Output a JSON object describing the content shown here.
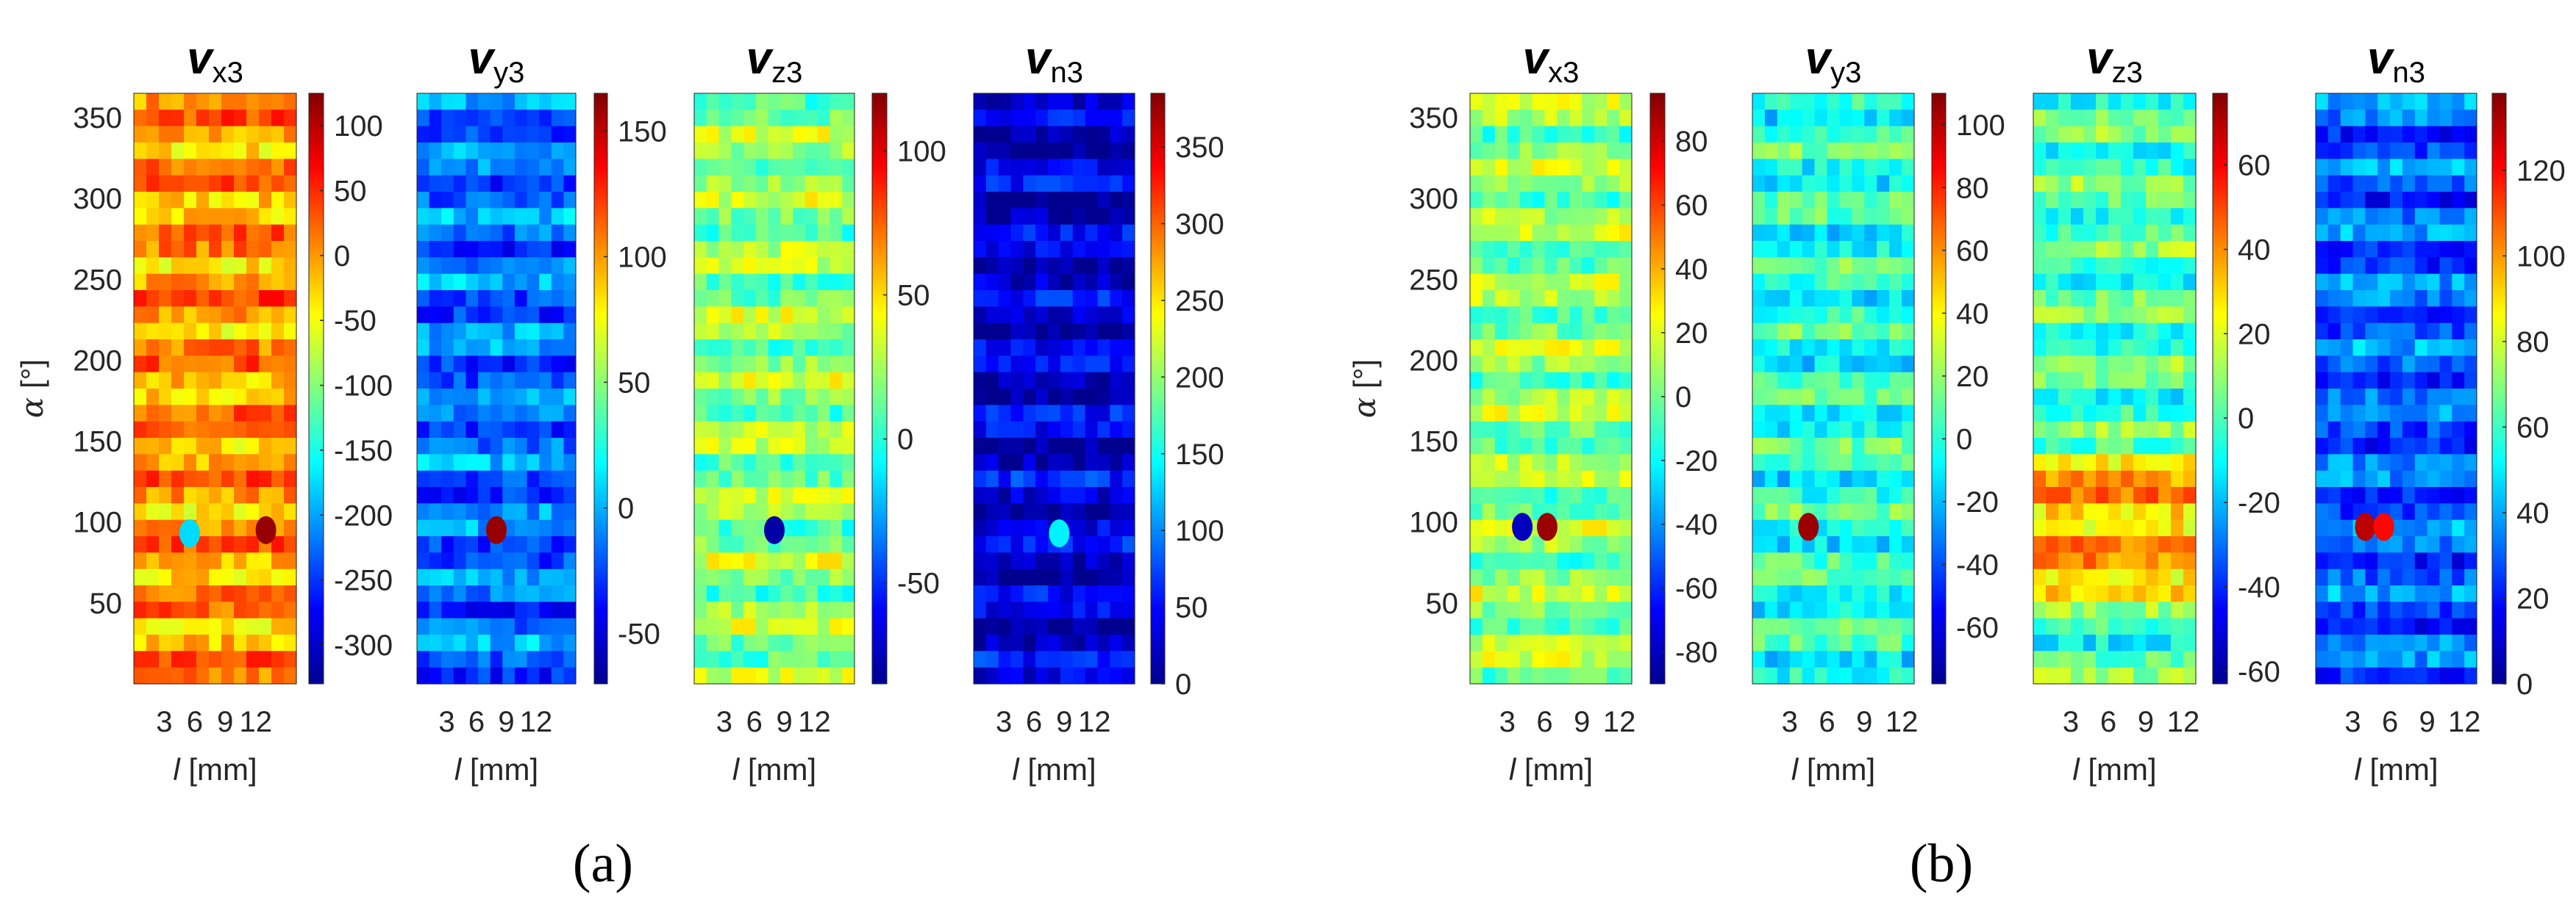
{
  "chart_data": {
    "type": "heatmap",
    "colormap": "jet",
    "panels": [
      {
        "label": "(a)",
        "xlabel_var": "l",
        "xlabel_unit": "[mm]",
        "ylabel_var": "α",
        "ylabel_unit": "[°]",
        "xlim": [
          0,
          16
        ],
        "xticks": [
          3,
          6,
          9,
          12
        ],
        "xtick_labels": [
          "3",
          "6",
          "9",
          "12"
        ],
        "ylim": [
          0,
          365
        ],
        "yticks": [
          50,
          100,
          150,
          200,
          250,
          300,
          350
        ],
        "subplots": [
          {
            "title_main": "v",
            "title_sub": "x3",
            "clim": [
              -330,
              125
            ],
            "cbar_ticks": [
              100,
              50,
              0,
              -50,
              -100,
              -150,
              -200,
              -250,
              -300
            ],
            "base": 0,
            "features": [
              {
                "l": 13,
                "alpha": 95,
                "v": 115
              },
              {
                "l": 5.5,
                "alpha": 93,
                "v": -175
              }
            ]
          },
          {
            "title_main": "v",
            "title_sub": "y3",
            "clim": [
              -70,
              165
            ],
            "cbar_ticks": [
              150,
              100,
              50,
              0,
              -50
            ],
            "base": -15,
            "features": [
              {
                "l": 8,
                "alpha": 95,
                "v": 160
              }
            ]
          },
          {
            "title_main": "v",
            "title_sub": "z3",
            "clim": [
              -85,
              120
            ],
            "cbar_ticks": [
              100,
              50,
              0,
              -50
            ],
            "base": 20,
            "features": [
              {
                "l": 8,
                "alpha": 95,
                "v": -80
              }
            ]
          },
          {
            "title_main": "v",
            "title_sub": "n3",
            "clim": [
              0,
              385
            ],
            "cbar_ticks": [
              350,
              300,
              250,
              200,
              150,
              100,
              50,
              0
            ],
            "base": 30,
            "features": [
              {
                "l": 8.5,
                "alpha": 93,
                "v": 140
              }
            ]
          }
        ]
      },
      {
        "label": "(b)",
        "xlabel_var": "l",
        "xlabel_unit": "[mm]",
        "ylabel_var": "α",
        "ylabel_unit": "[°]",
        "xlim": [
          0,
          13
        ],
        "xticks": [
          3,
          6,
          9,
          12
        ],
        "xtick_labels": [
          "3",
          "6",
          "9",
          "12"
        ],
        "ylim": [
          0,
          365
        ],
        "yticks": [
          50,
          100,
          150,
          200,
          250,
          300,
          350
        ],
        "subplots": [
          {
            "title_main": "v",
            "title_sub": "x3",
            "clim": [
              -90,
              95
            ],
            "cbar_ticks": [
              80,
              60,
              40,
              20,
              0,
              -20,
              -40,
              -60,
              -80
            ],
            "base": 5,
            "features": [
              {
                "l": 4.2,
                "alpha": 97,
                "v": -80
              },
              {
                "l": 6.2,
                "alpha": 97,
                "v": 90
              }
            ]
          },
          {
            "title_main": "v",
            "title_sub": "y3",
            "clim": [
              -78,
              110
            ],
            "cbar_ticks": [
              100,
              80,
              60,
              40,
              20,
              0,
              -20,
              -40,
              -60
            ],
            "base": 0,
            "features": [
              {
                "l": 4.5,
                "alpha": 97,
                "v": 105
              }
            ]
          },
          {
            "title_main": "v",
            "title_sub": "z3",
            "clim": [
              -63,
              77
            ],
            "cbar_ticks": [
              60,
              40,
              20,
              0,
              -20,
              -40,
              -60
            ],
            "base": 0,
            "features": []
          },
          {
            "title_main": "v",
            "title_sub": "n3",
            "clim": [
              0,
              138
            ],
            "cbar_ticks": [
              120,
              100,
              80,
              60,
              40,
              20,
              0
            ],
            "base": 30,
            "features": [
              {
                "l": 4,
                "alpha": 97,
                "v": 130
              },
              {
                "l": 5.5,
                "alpha": 97,
                "v": 120
              }
            ]
          }
        ]
      }
    ]
  }
}
